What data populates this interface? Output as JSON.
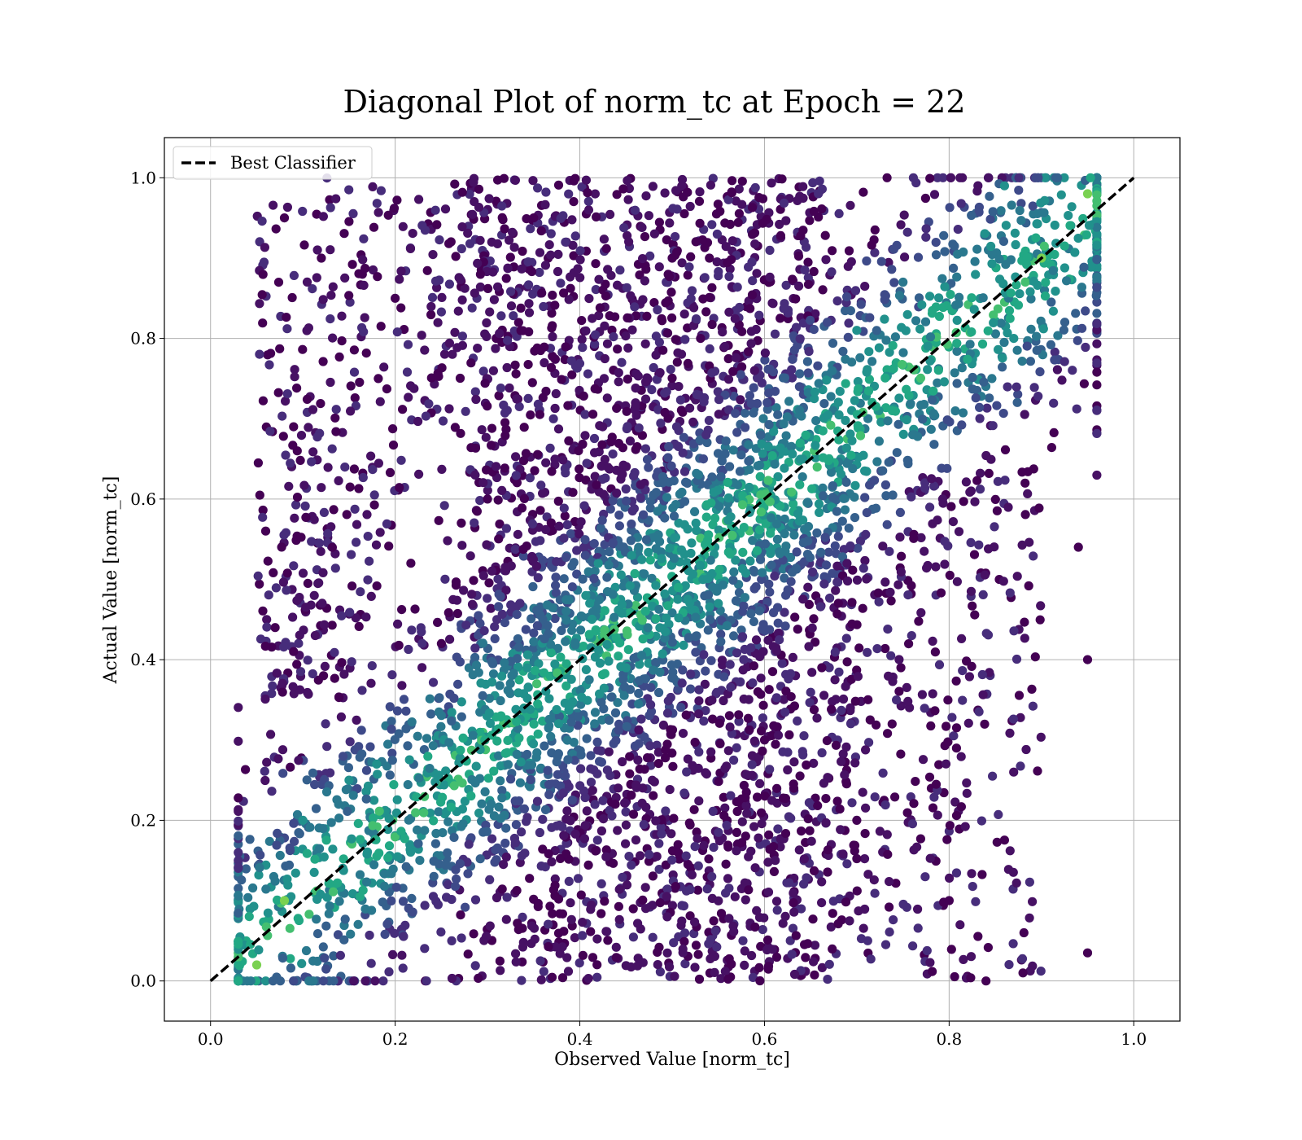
{
  "chart_data": {
    "type": "scatter",
    "title": "Diagonal Plot of norm_tc at Epoch = 22",
    "xlabel": "Observed Value [norm_tc]",
    "ylabel": "Actual Value [norm_tc]",
    "xlim": [
      -0.05,
      1.05
    ],
    "ylim": [
      -0.05,
      1.05
    ],
    "x_ticks": [
      "0.0",
      "0.2",
      "0.4",
      "0.6",
      "0.8",
      "1.0"
    ],
    "y_ticks": [
      "0.0",
      "0.2",
      "0.4",
      "0.6",
      "0.8",
      "1.0"
    ],
    "grid": true,
    "colormap": "viridis",
    "legend": {
      "position": "upper-left",
      "entries": [
        "Best Classifier"
      ]
    },
    "reference_line": {
      "name": "Best Classifier",
      "style": "dashed",
      "color": "#000000",
      "x": [
        0.0,
        1.0
      ],
      "y": [
        0.0,
        1.0
      ]
    },
    "series": [
      {
        "marker": "circle",
        "sample_points": [
          [
            0.05,
            0.02
          ],
          [
            0.08,
            0.1
          ],
          [
            0.1,
            0.2
          ],
          [
            0.15,
            0.25
          ],
          [
            0.18,
            0.27
          ],
          [
            0.25,
            0.42
          ],
          [
            0.3,
            0.6
          ],
          [
            0.42,
            0.52
          ],
          [
            0.45,
            0.39
          ],
          [
            0.55,
            0.47
          ],
          [
            0.7,
            0.81
          ],
          [
            0.86,
            0.99
          ],
          [
            0.87,
            0.8
          ],
          [
            0.9,
            0.9
          ],
          [
            0.95,
            0.98
          ],
          [
            0.2,
            0.85
          ],
          [
            0.12,
            0.9
          ],
          [
            0.08,
            0.95
          ],
          [
            0.35,
            0.95
          ],
          [
            0.5,
            0.9
          ],
          [
            0.6,
            0.3
          ],
          [
            0.7,
            0.2
          ],
          [
            0.8,
            0.1
          ],
          [
            0.94,
            0.54
          ],
          [
            0.95,
            0.4
          ],
          [
            0.95,
            0.035
          ],
          [
            0.88,
            0.01
          ],
          [
            0.84,
            0.0
          ],
          [
            0.07,
            0.44
          ],
          [
            0.09,
            0.69
          ]
        ]
      }
    ]
  }
}
